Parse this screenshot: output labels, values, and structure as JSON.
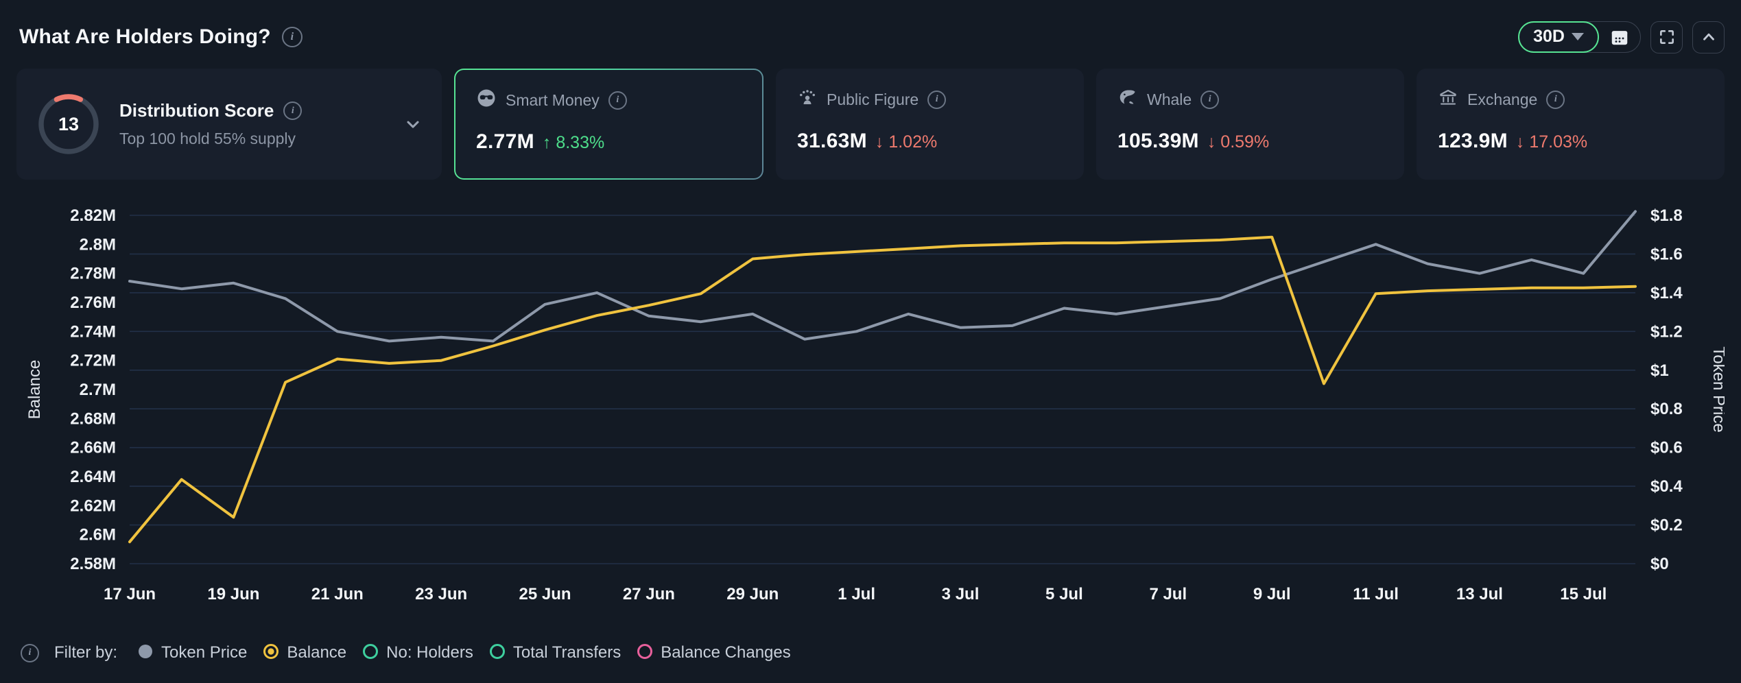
{
  "header": {
    "title": "What Are Holders Doing?",
    "range": "30D"
  },
  "cards": {
    "distribution": {
      "score": "13",
      "title": "Distribution Score",
      "subtitle": "Top 100 hold 55% supply"
    },
    "stats": [
      {
        "id": "smart-money",
        "icon": "smart-money-icon",
        "label": "Smart Money",
        "value": "2.77M",
        "arrow": "↑",
        "change": "8.33%",
        "direction": "up",
        "selected": true
      },
      {
        "id": "public-figure",
        "icon": "public-figure-icon",
        "label": "Public Figure",
        "value": "31.63M",
        "arrow": "↓",
        "change": "1.02%",
        "direction": "down",
        "selected": false
      },
      {
        "id": "whale",
        "icon": "whale-icon",
        "label": "Whale",
        "value": "105.39M",
        "arrow": "↓",
        "change": "0.59%",
        "direction": "down",
        "selected": false
      },
      {
        "id": "exchange",
        "icon": "exchange-icon",
        "label": "Exchange",
        "value": "123.9M",
        "arrow": "↓",
        "change": "17.03%",
        "direction": "down",
        "selected": false
      }
    ]
  },
  "chart_data": {
    "type": "line",
    "x": [
      "17 Jun",
      "18 Jun",
      "19 Jun",
      "20 Jun",
      "21 Jun",
      "22 Jun",
      "23 Jun",
      "24 Jun",
      "25 Jun",
      "26 Jun",
      "27 Jun",
      "28 Jun",
      "29 Jun",
      "30 Jun",
      "1 Jul",
      "2 Jul",
      "3 Jul",
      "4 Jul",
      "5 Jul",
      "6 Jul",
      "7 Jul",
      "8 Jul",
      "9 Jul",
      "10 Jul",
      "11 Jul",
      "12 Jul",
      "13 Jul",
      "14 Jul",
      "15 Jul",
      "16 Jul"
    ],
    "x_tick_labels": [
      "17 Jun",
      "19 Jun",
      "21 Jun",
      "23 Jun",
      "25 Jun",
      "27 Jun",
      "29 Jun",
      "1 Jul",
      "3 Jul",
      "5 Jul",
      "7 Jul",
      "9 Jul",
      "11 Jul",
      "13 Jul",
      "15 Jul"
    ],
    "series": [
      {
        "name": "Token Price",
        "axis": "right",
        "color": "#8e99aa",
        "values": [
          1.46,
          1.42,
          1.45,
          1.37,
          1.2,
          1.15,
          1.17,
          1.15,
          1.34,
          1.4,
          1.28,
          1.25,
          1.29,
          1.16,
          1.2,
          1.29,
          1.22,
          1.23,
          1.32,
          1.29,
          1.33,
          1.37,
          1.47,
          1.56,
          1.65,
          1.55,
          1.5,
          1.57,
          1.5,
          1.82
        ]
      },
      {
        "name": "Balance",
        "axis": "left",
        "color": "#f0c33f",
        "values": [
          2.595,
          2.638,
          2.612,
          2.705,
          2.721,
          2.718,
          2.72,
          2.73,
          2.741,
          2.751,
          2.758,
          2.766,
          2.79,
          2.793,
          2.795,
          2.797,
          2.799,
          2.8,
          2.801,
          2.801,
          2.802,
          2.803,
          2.805,
          2.704,
          2.766,
          2.768,
          2.769,
          2.77,
          2.77,
          2.771
        ]
      }
    ],
    "left_axis": {
      "label": "Balance",
      "unit": "M",
      "min": 2.58,
      "max": 2.82,
      "ticks": [
        "2.82M",
        "2.8M",
        "2.78M",
        "2.76M",
        "2.74M",
        "2.72M",
        "2.7M",
        "2.68M",
        "2.66M",
        "2.64M",
        "2.62M",
        "2.6M",
        "2.58M"
      ]
    },
    "right_axis": {
      "label": "Token Price",
      "unit": "$",
      "min": 0,
      "max": 1.8,
      "ticks": [
        "$1.8",
        "$1.6",
        "$1.4",
        "$1.2",
        "$1",
        "$0.8",
        "$0.6",
        "$0.4",
        "$0.2",
        "$0"
      ]
    },
    "grid": true,
    "legend_position": "bottom"
  },
  "legend": {
    "filter_label": "Filter by:",
    "items": [
      {
        "label": "Token Price",
        "color": "#8e99aa",
        "style": "filled",
        "selected": false
      },
      {
        "label": "Balance",
        "color": "#f0c33f",
        "style": "ring-dot",
        "selected": true
      },
      {
        "label": "No: Holders",
        "color": "#3ecf9e",
        "style": "ring",
        "selected": false
      },
      {
        "label": "Total Transfers",
        "color": "#3ecf9e",
        "style": "ring",
        "selected": false
      },
      {
        "label": "Balance Changes",
        "color": "#e8609c",
        "style": "ring",
        "selected": false
      }
    ]
  },
  "colors": {
    "background": "#131a24",
    "card": "#181f2c",
    "gridline": "#223048",
    "accent_green": "#57e493",
    "positive": "#4ede8b",
    "negative": "#ee7a6e",
    "balance_line": "#f0c33f",
    "price_line": "#8e99aa",
    "gauge_arc": "#ee7a6e",
    "gauge_track": "#3b4554"
  }
}
